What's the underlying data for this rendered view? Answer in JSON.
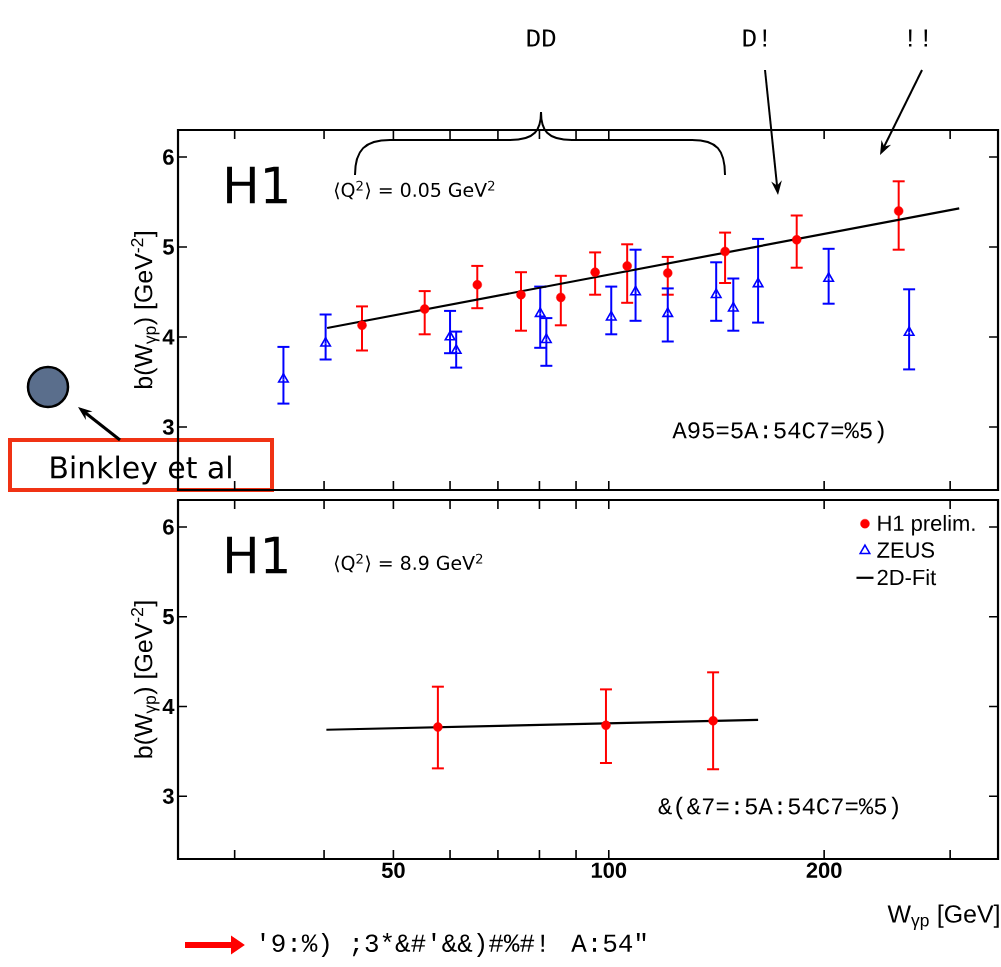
{
  "chart_data": [
    {
      "type": "scatter",
      "log": "x",
      "xlim": [
        25,
        350
      ],
      "ylim": [
        2.3,
        6.3
      ],
      "tick_labels": "y",
      "ylabel": "b(W$_{γp}$) [GeV$^{-2}$]",
      "xticks": [
        {
          "value": 30,
          "label": null
        },
        {
          "value": 40,
          "label": null
        },
        50,
        {
          "value": 60,
          "label": null
        },
        {
          "value": 70,
          "label": null
        },
        {
          "value": 80,
          "label": null
        },
        {
          "value": 90,
          "label": null
        },
        100,
        200,
        {
          "value": 300,
          "label": null
        }
      ],
      "yticks": [
        3,
        4,
        5,
        6
      ],
      "annotations": [
        "H1",
        "⟨Q$^{2}$⟩ = 0.05 GeV$^{2}$",
        "A95=5A:54C7=%5)",
        "DD",
        "D!",
        "!!",
        "Binkley et al"
      ],
      "series": [
        {
          "color": "#ff0000",
          "marker": "circle",
          "x": [
            45.2,
            55.3,
            65.5,
            75.4,
            85.7,
            95.7,
            106.1,
            120.9,
            145.4,
            183.1,
            254.2
          ],
          "values": [
            4.13,
            4.31,
            4.58,
            4.47,
            4.44,
            4.72,
            4.79,
            4.71,
            4.95,
            5.08,
            5.4
          ],
          "errors": [
            [
              3.85,
              4.34
            ],
            [
              4.03,
              4.51
            ],
            [
              4.32,
              4.79
            ],
            [
              4.07,
              4.72
            ],
            [
              4.13,
              4.68
            ],
            [
              4.47,
              4.94
            ],
            [
              4.38,
              5.03
            ],
            [
              4.47,
              4.89
            ],
            [
              4.6,
              5.16
            ],
            [
              4.77,
              5.35
            ],
            [
              4.97,
              5.73
            ]
          ]
        },
        {
          "color": "#0000ff",
          "marker": "triangle",
          "x": [
            35.1,
            40.2,
            60.0,
            61.2,
            80.2,
            81.8,
            100.8,
            109.0,
            120.9,
            141.3,
            149.3,
            161.7,
            202.9,
            262.9
          ],
          "values": [
            3.53,
            3.93,
            4.0,
            3.85,
            4.26,
            3.97,
            4.22,
            4.5,
            4.26,
            4.47,
            4.32,
            4.59,
            4.65,
            4.05
          ],
          "errors": [
            [
              3.26,
              3.89
            ],
            [
              3.75,
              4.25
            ],
            [
              3.82,
              4.29
            ],
            [
              3.66,
              4.06
            ],
            [
              3.88,
              4.56
            ],
            [
              3.68,
              4.21
            ],
            [
              4.03,
              4.56
            ],
            [
              4.18,
              4.97
            ],
            [
              3.95,
              4.54
            ],
            [
              4.18,
              4.83
            ],
            [
              4.07,
              4.65
            ],
            [
              4.16,
              5.09
            ],
            [
              4.37,
              4.98
            ],
            [
              3.64,
              4.53
            ]
          ]
        },
        {
          "type": "line",
          "color": "#000000",
          "x": [
            40.4,
            308.9
          ],
          "values": [
            4.1,
            5.43
          ]
        }
      ]
    },
    {
      "type": "scatter",
      "log": "x",
      "xlim": [
        25,
        350
      ],
      "ylim": [
        2.3,
        6.3
      ],
      "ylabel": "b(W$_{γp}$) [GeV$^{-2}$]",
      "xlabel": "W$_{γp}$ [GeV]",
      "legend": "top right",
      "xticks": [
        {
          "value": 30,
          "label": null
        },
        {
          "value": 40,
          "label": null
        },
        50,
        {
          "value": 60,
          "label": null
        },
        {
          "value": 70,
          "label": null
        },
        {
          "value": 80,
          "label": null
        },
        {
          "value": 90,
          "label": null
        },
        100,
        200,
        {
          "value": 300,
          "label": null
        }
      ],
      "yticks": [
        3,
        4,
        5,
        6
      ],
      "annotations": [
        "H1",
        "⟨Q$^{2}$⟩ = 8.9 GeV$^{2}$",
        "&(&7=:5A:54C7=%5)",
        "'9:%) ;3*&#'&&)#%#! A:54\""
      ],
      "series": [
        {
          "name": "H1 prelim.",
          "color": "#ff0000",
          "marker": "circle",
          "x": [
            57.7,
            99.1,
            139.9
          ],
          "values": [
            3.77,
            3.79,
            3.84
          ],
          "errors": [
            [
              3.31,
              4.22
            ],
            [
              3.37,
              4.19
            ],
            [
              3.3,
              4.38
            ]
          ]
        },
        {
          "name": "ZEUS",
          "color": "#0000ff",
          "marker": "triangle"
        },
        {
          "name": "2D-Fit",
          "type": "line",
          "color": "#000000",
          "x": [
            40.3,
            161.7
          ],
          "values": [
            3.74,
            3.85
          ]
        }
      ]
    }
  ]
}
